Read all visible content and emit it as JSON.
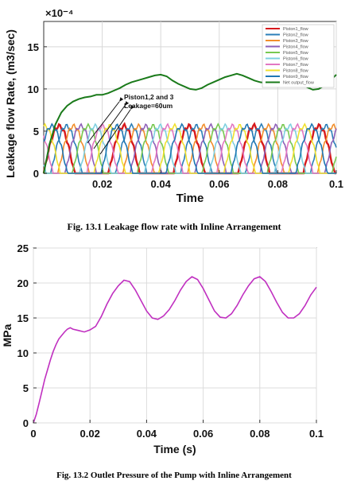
{
  "chart_data": [
    {
      "type": "line",
      "title": "",
      "caption": "Fig. 13.1 Leakage flow rate with Inline Arrangement",
      "xlabel": "Time",
      "ylabel": "Leakage flow Rate, (m3/sec)",
      "y_exponent": "×10⁻⁴",
      "xlim": [
        0,
        0.1
      ],
      "ylim": [
        0,
        18
      ],
      "x_ticks": [
        "0.02",
        "0.04",
        "0.06",
        "0.08",
        "0.1"
      ],
      "y_ticks": [
        "0",
        "5",
        "10",
        "15"
      ],
      "grid": true,
      "legend_placement": "top-right",
      "annotation": "Piston1,2 and 3\nLeakage=60um",
      "series": [
        {
          "name": "Piston1_flow",
          "color": "#d7191c",
          "phase": 0.0
        },
        {
          "name": "Piston2_flow",
          "color": "#2c7fb8",
          "phase": 0.111
        },
        {
          "name": "Piston3_flow",
          "color": "#f28e2b",
          "phase": 0.222
        },
        {
          "name": "Piston4_flow",
          "color": "#8e5fb8",
          "phase": 0.333
        },
        {
          "name": "Piston5_flow",
          "color": "#78c850",
          "phase": 0.444
        },
        {
          "name": "Piston6_flow",
          "color": "#7fd0e0",
          "phase": 0.555
        },
        {
          "name": "Piston7_flow",
          "color": "#e377c2",
          "phase": 0.666
        },
        {
          "name": "Piston8_flow",
          "color": "#f0e130",
          "phase": 0.777
        },
        {
          "name": "Piston9_flow",
          "color": "#1f77b4",
          "phase": 0.888
        },
        {
          "name": "Net output_flow",
          "color": "#1a7a1a",
          "x": [
            0,
            0.002,
            0.004,
            0.006,
            0.008,
            0.01,
            0.012,
            0.014,
            0.016,
            0.018,
            0.02,
            0.022,
            0.024,
            0.026,
            0.028,
            0.03,
            0.032,
            0.034,
            0.036,
            0.038,
            0.04,
            0.042,
            0.044,
            0.046,
            0.048,
            0.05,
            0.052,
            0.054,
            0.056,
            0.058,
            0.06,
            0.062,
            0.064,
            0.066,
            0.068,
            0.07,
            0.072,
            0.074,
            0.076,
            0.078,
            0.08,
            0.082,
            0.084,
            0.086,
            0.088,
            0.09,
            0.092,
            0.094,
            0.096,
            0.098,
            0.1
          ],
          "y": [
            0,
            3.5,
            5.8,
            7.2,
            8.0,
            8.5,
            8.8,
            9.0,
            9.1,
            9.3,
            9.3,
            9.5,
            9.8,
            10.1,
            10.5,
            10.8,
            11.0,
            11.2,
            11.4,
            11.6,
            11.7,
            11.5,
            11.0,
            10.6,
            10.3,
            10.0,
            9.9,
            10.1,
            10.5,
            10.8,
            11.1,
            11.4,
            11.6,
            11.8,
            11.6,
            11.3,
            11.0,
            10.8,
            10.7,
            10.9,
            11.2,
            11.4,
            11.6,
            11.2,
            10.7,
            10.2,
            9.9,
            10.0,
            10.4,
            11.0,
            11.7
          ]
        }
      ]
    },
    {
      "type": "line",
      "title": "",
      "caption": "Fig. 13.2 Outlet Pressure of the Pump with Inline Arrangement",
      "xlabel": "Time (s)",
      "ylabel": "MPa",
      "xlim": [
        0,
        0.1
      ],
      "ylim": [
        0,
        25
      ],
      "x_ticks": [
        "0",
        "0.02",
        "0.04",
        "0.06",
        "0.08",
        "0.1"
      ],
      "y_ticks": [
        "0",
        "5",
        "10",
        "15",
        "20",
        "25"
      ],
      "grid": true,
      "series": [
        {
          "name": "",
          "color": "#c030c0",
          "x": [
            0,
            0.001,
            0.002,
            0.003,
            0.004,
            0.005,
            0.006,
            0.007,
            0.008,
            0.009,
            0.01,
            0.011,
            0.012,
            0.013,
            0.014,
            0.016,
            0.018,
            0.02,
            0.022,
            0.024,
            0.026,
            0.028,
            0.03,
            0.032,
            0.034,
            0.036,
            0.038,
            0.04,
            0.042,
            0.044,
            0.046,
            0.048,
            0.05,
            0.052,
            0.054,
            0.056,
            0.058,
            0.06,
            0.062,
            0.064,
            0.066,
            0.068,
            0.07,
            0.072,
            0.074,
            0.076,
            0.078,
            0.08,
            0.082,
            0.084,
            0.086,
            0.088,
            0.09,
            0.092,
            0.094,
            0.096,
            0.098,
            0.1
          ],
          "y": [
            0,
            1.2,
            2.8,
            4.5,
            6.2,
            7.6,
            9.0,
            10.2,
            11.2,
            12.0,
            12.5,
            13.0,
            13.4,
            13.6,
            13.4,
            13.2,
            13.0,
            13.3,
            13.8,
            15.2,
            17.0,
            18.5,
            19.6,
            20.4,
            20.2,
            19.0,
            17.5,
            16.0,
            15.0,
            14.8,
            15.3,
            16.2,
            17.5,
            19.0,
            20.2,
            20.9,
            20.5,
            19.2,
            17.6,
            16.0,
            15.1,
            15.0,
            15.6,
            16.8,
            18.3,
            19.6,
            20.6,
            20.9,
            20.2,
            18.8,
            17.2,
            15.8,
            15.0,
            15.0,
            15.6,
            16.8,
            18.3,
            19.4
          ]
        }
      ]
    }
  ]
}
